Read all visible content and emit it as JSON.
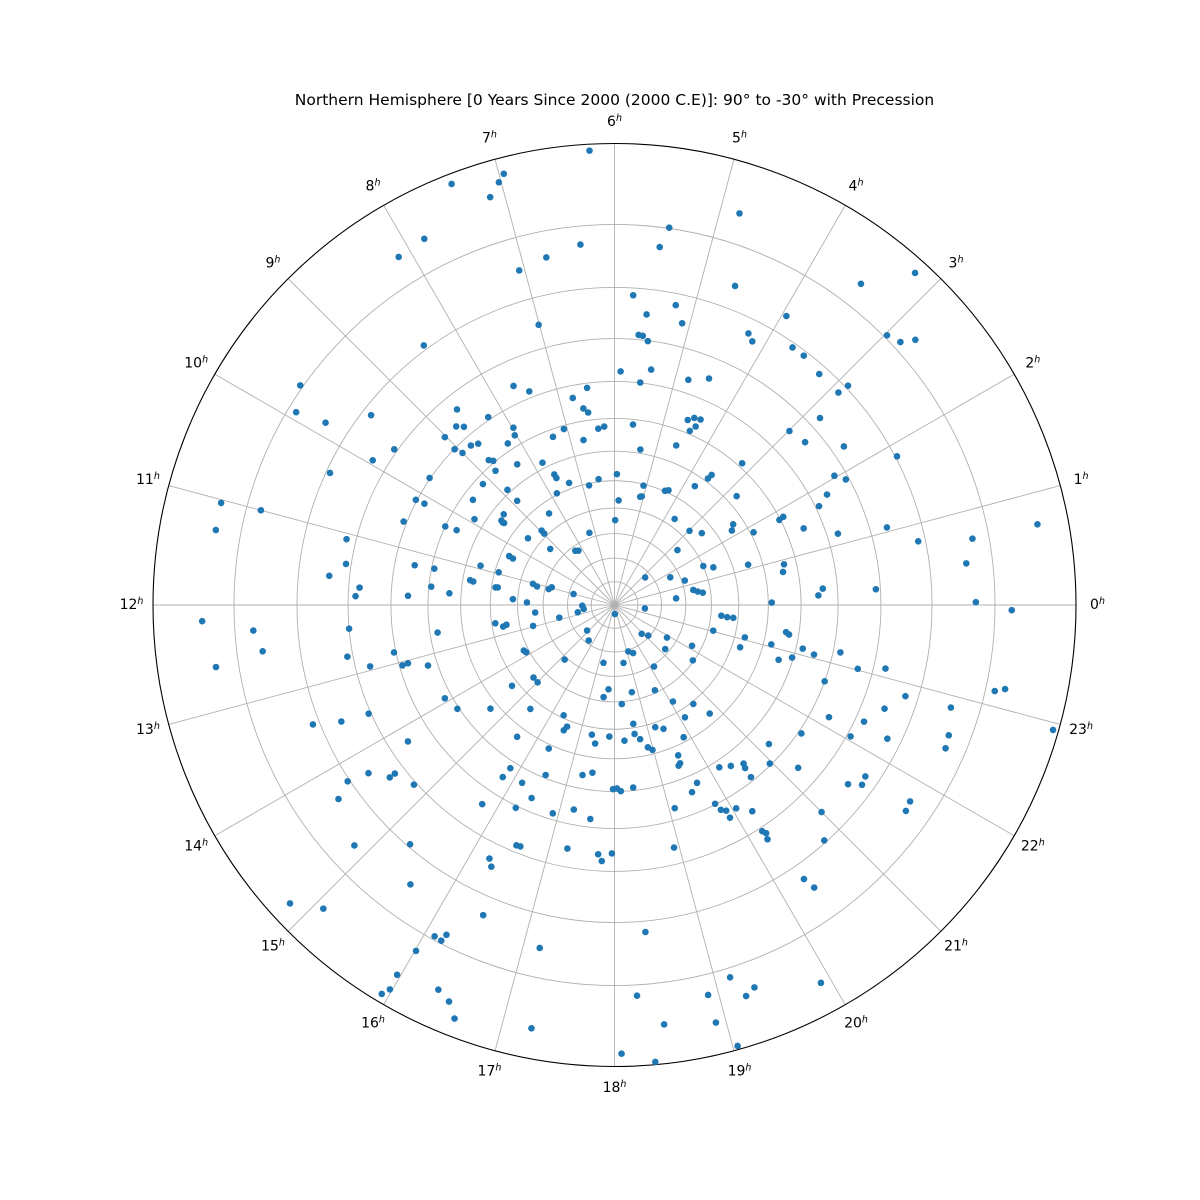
{
  "title": "Northern Hemisphere [0 Years Since 2000 (2000 C.E)]: 90° to -30° with Precession",
  "chart_data": {
    "type": "scatter",
    "subtype": "polar_star_chart",
    "projection": "stereographic",
    "theta_axis": {
      "unit": "hours",
      "direction": "counterclockwise",
      "zero_position": "right",
      "hour_labels": [
        0,
        1,
        2,
        3,
        4,
        5,
        6,
        7,
        8,
        9,
        10,
        11,
        12,
        13,
        14,
        15,
        16,
        17,
        18,
        19,
        20,
        21,
        22,
        23
      ],
      "hour_suffix": "h",
      "spokes_deg": 15
    },
    "radial_axis": {
      "label": "declination_deg",
      "center_value": 90,
      "edge_value": -30,
      "gridline_decs": [
        80,
        70,
        60,
        50,
        40,
        30,
        20,
        10,
        0,
        -10,
        -20
      ]
    },
    "grid": true,
    "legend": null,
    "colors": {
      "point": "#1f77b4",
      "grid": "#b0b0b0",
      "outline": "#000000",
      "background": "#ffffff"
    },
    "points_format": [
      "ra_hours",
      "dec_deg"
    ],
    "points": [
      [
        7.41,
        -28.9
      ],
      [
        7.83,
        -24.3
      ],
      [
        8.12,
        -23.9
      ],
      [
        8.42,
        -10.8
      ],
      [
        9.67,
        -20.4
      ],
      [
        9.92,
        -18.8
      ],
      [
        9.85,
        -14.1
      ],
      [
        9.47,
        -8.4
      ],
      [
        9.02,
        6.3
      ],
      [
        8.59,
        3.4
      ],
      [
        8.77,
        6.3
      ],
      [
        9.65,
        -0.7
      ],
      [
        9.05,
        10.1
      ],
      [
        6.21,
        -29.3
      ],
      [
        6.96,
        -28.2
      ],
      [
        7.02,
        -27.4
      ],
      [
        7.13,
        -26.0
      ],
      [
        4.82,
        -24.1
      ],
      [
        5.45,
        -20.1
      ],
      [
        5.52,
        -17.1
      ],
      [
        6.36,
        -17.3
      ],
      [
        6.74,
        -16.1
      ],
      [
        7.06,
        -15.1
      ],
      [
        4.62,
        -14.0
      ],
      [
        5.77,
        -8.7
      ],
      [
        5.23,
        -7.9
      ],
      [
        5.58,
        -5.3
      ],
      [
        5.1,
        -4.8
      ],
      [
        7.01,
        -4.9
      ],
      [
        5.66,
        -1.0
      ],
      [
        5.6,
        -0.9
      ],
      [
        5.52,
        0.1
      ],
      [
        4.25,
        -7.3
      ],
      [
        4.16,
        -6.3
      ],
      [
        5.9,
        7.5
      ],
      [
        5.41,
        6.4
      ],
      [
        4.79,
        6.7
      ],
      [
        4.49,
        4.7
      ],
      [
        5.56,
        9.9
      ],
      [
        7.65,
        5.7
      ],
      [
        7.45,
        8.4
      ],
      [
        6.48,
        11.2
      ],
      [
        6.76,
        13.2
      ],
      [
        6.6,
        16.5
      ],
      [
        6.52,
        17.8
      ],
      [
        8.26,
        9.3
      ],
      [
        7.98,
        15.1
      ],
      [
        8.03,
        17.1
      ],
      [
        7.07,
        21.0
      ],
      [
        7.34,
        22.2
      ],
      [
        6.35,
        22.8
      ],
      [
        6.22,
        22.3
      ],
      [
        5.61,
        21.5
      ],
      [
        4.56,
        16.5
      ],
      [
        4.46,
        15.3
      ],
      [
        4.34,
        15.0
      ],
      [
        4.44,
        19.1
      ],
      [
        4.37,
        17.3
      ],
      [
        6.71,
        25.6
      ],
      [
        8.8,
        12.3
      ],
      [
        5.37,
        28.8
      ],
      [
        8.68,
        7.6
      ],
      [
        4.59,
        24.6
      ],
      [
        3.57,
        28.9
      ],
      [
        3.55,
        27.3
      ],
      [
        4.32,
        39.1
      ],
      [
        5.11,
        44.7
      ],
      [
        3.2,
        18.8
      ],
      [
        3.19,
        -28.5
      ],
      [
        3.5,
        -23.3
      ],
      [
        3.95,
        -13.2
      ],
      [
        2.98,
        -20.4
      ],
      [
        2.84,
        -21.1
      ],
      [
        2.76,
        -22.8
      ],
      [
        3.69,
        -9.2
      ],
      [
        3.52,
        -9.2
      ],
      [
        3.23,
        -8.4
      ],
      [
        2.88,
        -10.5
      ],
      [
        2.9,
        -8.4
      ],
      [
        2.99,
        4.4
      ],
      [
        2.7,
        3.5
      ],
      [
        2.31,
        -2.6
      ],
      [
        2.82,
        -2.4
      ],
      [
        1.85,
        -10.3
      ],
      [
        2.03,
        2.5
      ],
      [
        1.9,
        0.7
      ],
      [
        1.72,
        9.1
      ],
      [
        1.82,
        20.3
      ],
      [
        1.84,
        18.9
      ],
      [
        1.47,
        15.1
      ],
      [
        1.18,
        7.3
      ],
      [
        0.72,
        -26.5
      ],
      [
        0.7,
        -17.6
      ],
      [
        0.45,
        -16.1
      ],
      [
        0.9,
        23.6
      ],
      [
        0.74,
        24.4
      ],
      [
        0.18,
        15.1
      ],
      [
        0.3,
        13.8
      ],
      [
        0.23,
        1.0
      ],
      [
        0.03,
        -17.2
      ],
      [
        23.95,
        -22.3
      ],
      [
        23.4,
        23.8
      ],
      [
        23.36,
        22.8
      ],
      [
        23.13,
        18.1
      ],
      [
        23.07,
        14.7
      ],
      [
        22.77,
        24.0
      ],
      [
        22.9,
        20.4
      ],
      [
        23.21,
        8.2
      ],
      [
        23.02,
        3.3
      ],
      [
        23.12,
        -2.5
      ],
      [
        22.67,
        10.0
      ],
      [
        22.84,
        -7.7
      ],
      [
        23.15,
        -21.3
      ],
      [
        23.19,
        -22.6
      ],
      [
        22.6,
        -4.7
      ],
      [
        22.87,
        -15.7
      ],
      [
        22.16,
        5.5
      ],
      [
        22.33,
        -1.9
      ],
      [
        21.7,
        9.2
      ],
      [
        22.06,
        -0.8
      ],
      [
        22.26,
        -7.5
      ],
      [
        22.58,
        -16.8
      ],
      [
        22.44,
        -17.1
      ],
      [
        22.94,
        -29.4
      ],
      [
        0.06,
        28.9
      ],
      [
        23.06,
        27.5
      ],
      [
        1.06,
        -3.5
      ],
      [
        0.79,
        -8.7
      ],
      [
        1.83,
        6.1
      ],
      [
        9.94,
        -3.2
      ],
      [
        10.34,
        -9.3
      ],
      [
        9.7,
        9.8
      ],
      [
        11.03,
        -23.5
      ],
      [
        11.0,
        -17.9
      ],
      [
        10.14,
        9.7
      ],
      [
        10.13,
        12.1
      ],
      [
        10.56,
        9.2
      ],
      [
        10.34,
        20.0
      ],
      [
        10.31,
        23.5
      ],
      [
        11.29,
        -23.4
      ],
      [
        11.08,
        -2.0
      ],
      [
        11.42,
        -1.1
      ],
      [
        11.61,
        -4.2
      ],
      [
        11.25,
        15.2
      ],
      [
        11.24,
        20.8
      ],
      [
        11.74,
        2.4
      ],
      [
        11.87,
        1.6
      ],
      [
        11.62,
        20.7
      ],
      [
        11.73,
        26.3
      ],
      [
        11.83,
        14.4
      ],
      [
        12.15,
        -24.3
      ],
      [
        12.27,
        -17.3
      ],
      [
        12.5,
        -16.2
      ],
      [
        12.59,
        -23.1
      ],
      [
        12.34,
        0.0
      ],
      [
        12.73,
        -1.2
      ],
      [
        12.94,
        3.2
      ],
      [
        12.81,
        9.5
      ],
      [
        13.06,
        10.8
      ],
      [
        13.05,
        12.3
      ],
      [
        13.2,
        17.3
      ],
      [
        13.92,
        18.0
      ],
      [
        14.23,
        19.5
      ],
      [
        13.59,
        -0.5
      ],
      [
        13.54,
        -6.2
      ],
      [
        13.44,
        -11.2
      ],
      [
        14.23,
        4.2
      ],
      [
        14.29,
        -6.4
      ],
      [
        14.5,
        -3.5
      ],
      [
        14.5,
        -2.2
      ],
      [
        14.23,
        -10.4
      ],
      [
        14.79,
        -0.6
      ],
      [
        14.34,
        -13.4
      ],
      [
        14.85,
        -16.1
      ],
      [
        15.3,
        -9.5
      ],
      [
        15.59,
        -14.8
      ],
      [
        14.84,
        -27.7
      ],
      [
        15.08,
        -25.3
      ],
      [
        16.1,
        -19.5
      ],
      [
        16.18,
        -19.6
      ],
      [
        16.2,
        -18.5
      ],
      [
        16.01,
        -22.5
      ],
      [
        15.97,
        -26.3
      ],
      [
        16.36,
        -25.6
      ],
      [
        15.94,
        -29.1
      ],
      [
        15.98,
        -28.2
      ],
      [
        16.49,
        -26.4
      ],
      [
        16.59,
        -28.0
      ],
      [
        15.83,
        18.0
      ],
      [
        15.8,
        14.8
      ],
      [
        16.53,
        20.9
      ],
      [
        17.29,
        24.0
      ],
      [
        17.5,
        25.2
      ],
      [
        16.17,
        16.1
      ],
      [
        19.45,
        24.0
      ],
      [
        20.19,
        18.1
      ],
      [
        20.39,
        16.6
      ],
      [
        20.61,
        15.0
      ],
      [
        20.58,
        13.8
      ],
      [
        18.05,
        20.9
      ],
      [
        18.13,
        20.1
      ],
      [
        17.97,
        20.7
      ],
      [
        18.39,
        20.9
      ],
      [
        19.66,
        17.3
      ],
      [
        19.5,
        15.5
      ],
      [
        16.45,
        13.5
      ],
      [
        15.76,
        6.2
      ],
      [
        16.27,
        9.5
      ],
      [
        16.9,
        11.6
      ],
      [
        17.25,
        13.9
      ],
      [
        17.57,
        12.1
      ],
      [
        19.1,
        13.0
      ],
      [
        19.79,
        10.2
      ],
      [
        19.83,
        8.2
      ],
      [
        19.9,
        7.4
      ],
      [
        19.9,
        5.5
      ],
      [
        20.06,
        6.7
      ],
      [
        20.25,
        4.1
      ],
      [
        20.21,
        -0.8
      ],
      [
        20.24,
        -1.6
      ],
      [
        20.21,
        -2.8
      ],
      [
        16.52,
        1.5
      ],
      [
        16.58,
        1.6
      ],
      [
        17.27,
        4.1
      ],
      [
        17.75,
        3.7
      ],
      [
        17.96,
        4.0
      ],
      [
        17.81,
        2.2
      ],
      [
        16.25,
        -3.4
      ],
      [
        16.32,
        -4.7
      ],
      [
        18.92,
        3.7
      ],
      [
        16.47,
        -13.3
      ],
      [
        17.18,
        -15.6
      ],
      [
        18.36,
        -11.9
      ],
      [
        19.15,
        -21.3
      ],
      [
        19.34,
        -23.6
      ],
      [
        19.24,
        -24.3
      ],
      [
        18.9,
        -22.8
      ],
      [
        18.22,
        -21.5
      ],
      [
        18.91,
        -26.4
      ],
      [
        18.45,
        -25.5
      ],
      [
        17.26,
        -26.6
      ],
      [
        19.04,
        -29.6
      ],
      [
        18.06,
        -28.6
      ],
      [
        18.34,
        -29.7
      ],
      [
        21.23,
        4.7
      ],
      [
        21.5,
        -5.7
      ],
      [
        21.6,
        -7.9
      ],
      [
        21.71,
        -7.5
      ],
      [
        21.76,
        -16.2
      ],
      [
        21.65,
        -16.5
      ],
      [
        21.0,
        -5.4
      ],
      [
        20.78,
        -9.6
      ],
      [
        20.31,
        -12.7
      ],
      [
        20.35,
        -14.8
      ],
      [
        19.91,
        -26.5
      ],
      [
        8.68,
        13.2
      ],
      [
        8.23,
        18.0
      ],
      [
        9.0,
        12.2
      ],
      [
        8.73,
        18.5
      ],
      [
        8.67,
        19.5
      ],
      [
        8.77,
        22.1
      ],
      [
        8.31,
        24.6
      ],
      [
        7.79,
        28.2
      ],
      [
        7.65,
        33.3
      ],
      [
        7.64,
        34.7
      ],
      [
        7.36,
        37.9
      ],
      [
        6.8,
        40.7
      ],
      [
        9.16,
        22.3
      ],
      [
        9.56,
        23.0
      ],
      [
        8.86,
        28.9
      ],
      [
        8.87,
        33.7
      ],
      [
        7.82,
        39.5
      ],
      [
        9.55,
        34.2
      ],
      [
        9.56,
        35.4
      ],
      [
        9.9,
        26.7
      ],
      [
        8.37,
        44.2
      ],
      [
        8.96,
        47.3
      ],
      [
        8.97,
        48.8
      ],
      [
        9.49,
        45.4
      ],
      [
        9.26,
        54.5
      ],
      [
        10.34,
        42.9
      ],
      [
        10.36,
        44.5
      ],
      [
        10.91,
        34.7
      ],
      [
        11.35,
        32.4
      ],
      [
        11.37,
        33.5
      ],
      [
        10.95,
        41.4
      ],
      [
        11.43,
        42.2
      ],
      [
        11.03,
        54.9
      ],
      [
        11.1,
        56.7
      ],
      [
        8.39,
        61.8
      ],
      [
        8.24,
        62.5
      ],
      [
        11.0,
        71.9
      ],
      [
        11.78,
        48.2
      ],
      [
        12.59,
        22.2
      ],
      [
        6.48,
        39.1
      ],
      [
        5.93,
        37.7
      ],
      [
        5.09,
        40.5
      ],
      [
        5.06,
        44.4
      ],
      [
        4.41,
        39.8
      ],
      [
        3.73,
        33.4
      ],
      [
        2.78,
        26.9
      ],
      [
        2.28,
        33.4
      ],
      [
        2.16,
        34.9
      ],
      [
        9.38,
        33.5
      ],
      [
        5.97,
        54.7
      ],
      [
        3.67,
        47.0
      ],
      [
        2.98,
        46.8
      ],
      [
        2.63,
        44.0
      ],
      [
        2.74,
        55.2
      ],
      [
        7.28,
        58.0
      ],
      [
        5.85,
        47.1
      ],
      [
        9.57,
        34.9
      ],
      [
        11.44,
        41.4
      ],
      [
        11.89,
        53.6
      ],
      [
        12.36,
        56.7
      ],
      [
        12.58,
        41.3
      ],
      [
        12.69,
        45.2
      ],
      [
        12.73,
        43.9
      ],
      [
        12.96,
        55.0
      ],
      [
        13.78,
        48.3
      ],
      [
        13.88,
        48.8
      ],
      [
        14.55,
        37.8
      ],
      [
        14.79,
        45.6
      ],
      [
        15.01,
        45.5
      ],
      [
        14.66,
        27.5
      ],
      [
        15.4,
        36.7
      ],
      [
        15.57,
        26.8
      ],
      [
        11.09,
        61.5
      ],
      [
        10.95,
        62.5
      ],
      [
        12.86,
        66.0
      ],
      [
        15.17,
        59.0
      ],
      [
        12.08,
        76.2
      ],
      [
        12.49,
        76.7
      ],
      [
        12.75,
        74.0
      ],
      [
        14.86,
        74.0
      ],
      [
        15.6,
        71.3
      ],
      [
        17.28,
        65.1
      ],
      [
        17.73,
        54.8
      ],
      [
        17.55,
        51.6
      ],
      [
        18.59,
        65.2
      ],
      [
        19.1,
        69.4
      ],
      [
        20.89,
        73.1
      ],
      [
        21.19,
        70.6
      ],
      [
        21.88,
        63.9
      ],
      [
        21.27,
        61.7
      ],
      [
        20.18,
        59.3
      ],
      [
        19.41,
        68.1
      ],
      [
        19.69,
        51.0
      ],
      [
        18.75,
        53.1
      ],
      [
        18.28,
        49.1
      ],
      [
        18.6,
        41.4
      ],
      [
        20.08,
        44.1
      ],
      [
        21.65,
        50.4
      ],
      [
        22.15,
        53.6
      ],
      [
        23.03,
        48.1
      ],
      [
        23.62,
        46.1
      ],
      [
        23.59,
        43.9
      ],
      [
        23.59,
        41.7
      ],
      [
        1.39,
        46.7
      ],
      [
        1.58,
        50.0
      ],
      [
        1.28,
        58.8
      ],
      [
        0.72,
        56.5
      ],
      [
        0.61,
        54.9
      ],
      [
        0.53,
        53.0
      ],
      [
        0.41,
        63.8
      ],
      [
        2.8,
        72.4
      ],
      [
        1.76,
        63.7
      ],
      [
        1.12,
        34.7
      ],
      [
        1.84,
        29.0
      ],
      [
        22.76,
        37.1
      ],
      [
        23.07,
        36.5
      ],
      [
        20.57,
        39.2
      ],
      [
        20.14,
        37.1
      ],
      [
        19.44,
        36.9
      ],
      [
        19.84,
        31.5
      ],
      [
        17.85,
        37.4
      ],
      [
        17.47,
        34.6
      ],
      [
        16.53,
        36.2
      ],
      [
        16.36,
        28.7
      ],
      [
        18.17,
        86.1
      ],
      [
        23.57,
        76.9
      ],
      [
        16.35,
        41.0
      ],
      [
        16.58,
        37.8
      ],
      [
        17.34,
        37.4
      ],
      [
        18.28,
        35.9
      ],
      [
        18.59,
        37.8
      ],
      [
        18.72,
        35.7
      ],
      [
        18.88,
        32.5
      ],
      [
        18.98,
        31.3
      ],
      [
        19.23,
        38.4
      ],
      [
        20.75,
        33.1
      ],
      [
        19.53,
        27.0
      ],
      [
        19.5,
        24.5
      ],
      [
        20.56,
        11.0
      ],
      [
        21.2,
        14.1
      ],
      [
        20.96,
        10.4
      ]
    ]
  }
}
